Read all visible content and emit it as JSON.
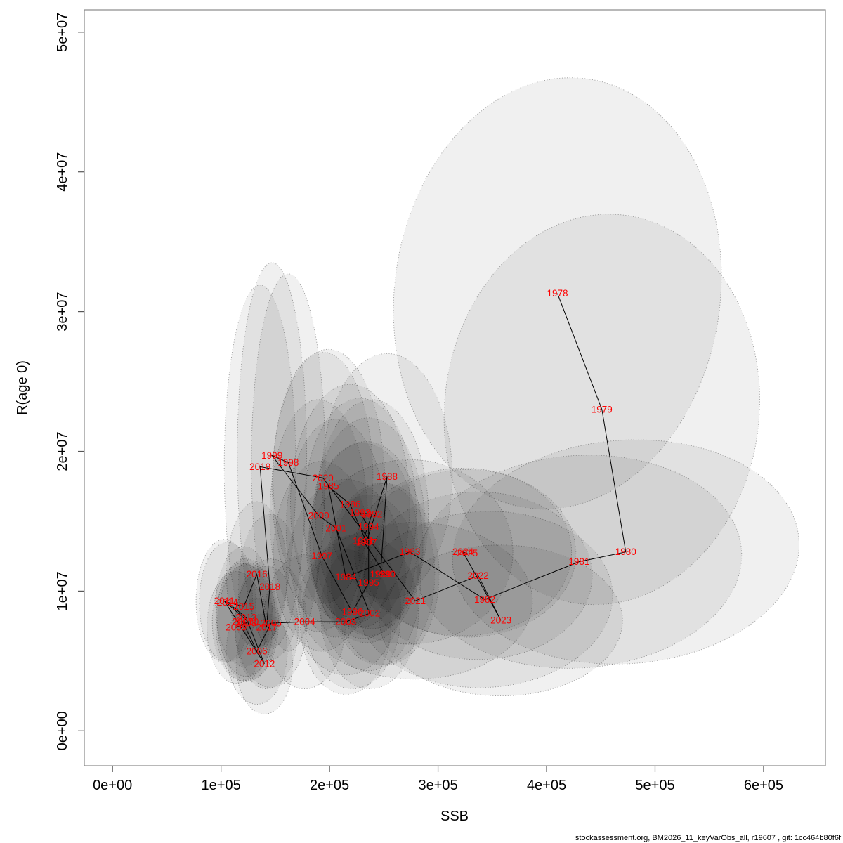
{
  "page": {
    "background": "#ffffff"
  },
  "caption": "stockassessment.org, BM2026_11_keyVarObs_all, r19607 , git: 1cc464b80f6f",
  "chart_data": {
    "type": "scatter",
    "title": "",
    "xlabel": "SSB",
    "ylabel": "R(age 0)",
    "xlim": [
      -26000,
      657000
    ],
    "ylim": [
      -2500000,
      51600000
    ],
    "x_ticks": {
      "values": [
        0,
        100000,
        200000,
        300000,
        400000,
        500000,
        600000
      ],
      "labels": [
        "0e+00",
        "1e+05",
        "2e+05",
        "3e+05",
        "4e+05",
        "5e+05",
        "6e+05"
      ]
    },
    "y_ticks": {
      "values": [
        0,
        10000000,
        20000000,
        30000000,
        40000000,
        50000000
      ],
      "labels": [
        "0e+00",
        "1e+07",
        "2e+07",
        "3e+07",
        "4e+07",
        "5e+07"
      ]
    },
    "grid": false,
    "legend": "none",
    "label_color": "#ff0000",
    "line_color": "#000000",
    "ellipse_fill_alpha": 0.06,
    "ellipse_stroke": "rgba(70,70,70,0.55)",
    "box_color": "#888888",
    "tick_color": "#555555",
    "note": "Year points connected chronologically; each point has a translucent dotted covariance ellipse (semi-axes ell_sx, ell_sy in data units, rot in degrees).",
    "points": [
      {
        "year": 1978,
        "ssb": 410000,
        "rec": 31300000,
        "ell_sx": 150000,
        "ell_sy": 15500000,
        "rot": 8
      },
      {
        "year": 1979,
        "ssb": 451000,
        "rec": 23000000,
        "ell_sx": 145000,
        "ell_sy": 14000000,
        "rot": 6
      },
      {
        "year": 1980,
        "ssb": 473000,
        "rec": 12800000,
        "ell_sx": 160000,
        "ell_sy": 8000000,
        "rot": -4
      },
      {
        "year": 1981,
        "ssb": 430000,
        "rec": 12100000,
        "ell_sx": 150000,
        "ell_sy": 7600000,
        "rot": -4
      },
      {
        "year": 1982,
        "ssb": 343000,
        "rec": 9400000,
        "ell_sx": 118000,
        "ell_sy": 6300000,
        "rot": -3
      },
      {
        "year": 1983,
        "ssb": 274000,
        "rec": 12800000,
        "ell_sx": 95000,
        "ell_sy": 6600000,
        "rot": 0
      },
      {
        "year": 1984,
        "ssb": 215000,
        "rec": 11000000,
        "ell_sx": 55000,
        "ell_sy": 7000000,
        "rot": 0
      },
      {
        "year": 1985,
        "ssb": 199000,
        "rec": 17500000,
        "ell_sx": 52000,
        "ell_sy": 9800000,
        "rot": 0
      },
      {
        "year": 1986,
        "ssb": 219000,
        "rec": 16200000,
        "ell_sx": 55000,
        "ell_sy": 8600000,
        "rot": 0
      },
      {
        "year": 1987,
        "ssb": 234000,
        "rec": 13500000,
        "ell_sx": 52000,
        "ell_sy": 7200000,
        "rot": 0
      },
      {
        "year": 1988,
        "ssb": 253000,
        "rec": 18200000,
        "ell_sx": 60000,
        "ell_sy": 8800000,
        "rot": 0
      },
      {
        "year": 1989,
        "ssb": 247000,
        "rec": 11200000,
        "ell_sx": 50000,
        "ell_sy": 6500000,
        "rot": 0
      },
      {
        "year": 1990,
        "ssb": 251000,
        "rec": 11200000,
        "ell_sx": 50000,
        "ell_sy": 6500000,
        "rot": 0
      },
      {
        "year": 1991,
        "ssb": 231000,
        "rec": 13600000,
        "ell_sx": 50000,
        "ell_sy": 7000000,
        "rot": 0
      },
      {
        "year": 1992,
        "ssb": 239000,
        "rec": 15500000,
        "ell_sx": 52000,
        "ell_sy": 8200000,
        "rot": 0
      },
      {
        "year": 1993,
        "ssb": 228000,
        "rec": 15600000,
        "ell_sx": 52000,
        "ell_sy": 8200000,
        "rot": 0
      },
      {
        "year": 1994,
        "ssb": 236000,
        "rec": 14600000,
        "ell_sx": 52000,
        "ell_sy": 7800000,
        "rot": 0
      },
      {
        "year": 1995,
        "ssb": 236000,
        "rec": 10600000,
        "ell_sx": 48000,
        "ell_sy": 6300000,
        "rot": 0
      },
      {
        "year": 1996,
        "ssb": 221000,
        "rec": 8500000,
        "ell_sx": 45000,
        "ell_sy": 5500000,
        "rot": 0
      },
      {
        "year": 1997,
        "ssb": 193000,
        "rec": 12500000,
        "ell_sx": 45000,
        "ell_sy": 6800000,
        "rot": 0
      },
      {
        "year": 1998,
        "ssb": 162000,
        "rec": 19200000,
        "ell_sx": 34000,
        "ell_sy": 13500000,
        "rot": 0
      },
      {
        "year": 1999,
        "ssb": 147000,
        "rec": 19700000,
        "ell_sx": 32000,
        "ell_sy": 13800000,
        "rot": 0
      },
      {
        "year": 2000,
        "ssb": 190000,
        "rec": 15400000,
        "ell_sx": 45000,
        "ell_sy": 8300000,
        "rot": 0
      },
      {
        "year": 2001,
        "ssb": 206000,
        "rec": 14500000,
        "ell_sx": 46000,
        "ell_sy": 7800000,
        "rot": 0
      },
      {
        "year": 2002,
        "ssb": 237000,
        "rec": 8400000,
        "ell_sx": 45000,
        "ell_sy": 5400000,
        "rot": 0
      },
      {
        "year": 2003,
        "ssb": 215000,
        "rec": 7800000,
        "ell_sx": 42000,
        "ell_sy": 5200000,
        "rot": 0
      },
      {
        "year": 2004,
        "ssb": 177000,
        "rec": 7800000,
        "ell_sx": 38000,
        "ell_sy": 4800000,
        "rot": 0
      },
      {
        "year": 2005,
        "ssb": 146000,
        "rec": 7700000,
        "ell_sx": 33000,
        "ell_sy": 4600000,
        "rot": 0
      },
      {
        "year": 2006,
        "ssb": 133000,
        "rec": 5700000,
        "ell_sx": 28000,
        "ell_sy": 3800000,
        "rot": 0
      },
      {
        "year": 2007,
        "ssb": 120000,
        "rec": 7800000,
        "ell_sx": 28000,
        "ell_sy": 4200000,
        "rot": 0
      },
      {
        "year": 2008,
        "ssb": 123000,
        "rec": 7700000,
        "ell_sx": 28000,
        "ell_sy": 4200000,
        "rot": 0
      },
      {
        "year": 2009,
        "ssb": 114000,
        "rec": 7400000,
        "ell_sx": 27000,
        "ell_sy": 4000000,
        "rot": 0
      },
      {
        "year": 2010,
        "ssb": 125000,
        "rec": 7800000,
        "ell_sx": 28000,
        "ell_sy": 4200000,
        "rot": 0
      },
      {
        "year": 2011,
        "ssb": 103000,
        "rec": 9300000,
        "ell_sx": 26000,
        "ell_sy": 4400000,
        "rot": 0
      },
      {
        "year": 2012,
        "ssb": 140000,
        "rec": 4800000,
        "ell_sx": 26000,
        "ell_sy": 3600000,
        "rot": 0
      },
      {
        "year": 2013,
        "ssb": 123000,
        "rec": 8100000,
        "ell_sx": 27000,
        "ell_sy": 4200000,
        "rot": 0
      },
      {
        "year": 2014,
        "ssb": 106000,
        "rec": 9200000,
        "ell_sx": 26000,
        "ell_sy": 4300000,
        "rot": 0
      },
      {
        "year": 2015,
        "ssb": 121000,
        "rec": 8900000,
        "ell_sx": 26000,
        "ell_sy": 4300000,
        "rot": 0
      },
      {
        "year": 2016,
        "ssb": 133000,
        "rec": 11200000,
        "ell_sx": 28000,
        "ell_sy": 5200000,
        "rot": 0
      },
      {
        "year": 2017,
        "ssb": 142000,
        "rec": 7400000,
        "ell_sx": 29000,
        "ell_sy": 4400000,
        "rot": 0
      },
      {
        "year": 2018,
        "ssb": 145000,
        "rec": 10300000,
        "ell_sx": 29000,
        "ell_sy": 5200000,
        "rot": 0
      },
      {
        "year": 2019,
        "ssb": 136000,
        "rec": 18900000,
        "ell_sx": 33000,
        "ell_sy": 13000000,
        "rot": 0
      },
      {
        "year": 2020,
        "ssb": 194000,
        "rec": 18100000,
        "ell_sx": 46000,
        "ell_sy": 9000000,
        "rot": 0
      },
      {
        "year": 2021,
        "ssb": 279000,
        "rec": 9300000,
        "ell_sx": 108000,
        "ell_sy": 5600000,
        "rot": 0
      },
      {
        "year": 2022,
        "ssb": 337000,
        "rec": 11100000,
        "ell_sx": 105000,
        "ell_sy": 6000000,
        "rot": 0
      },
      {
        "year": 2023,
        "ssb": 358000,
        "rec": 7900000,
        "ell_sx": 112000,
        "ell_sy": 5400000,
        "rot": 0
      },
      {
        "year": 2024,
        "ssb": 323000,
        "rec": 12800000,
        "ell_sx": 100000,
        "ell_sy": 6000000,
        "rot": 0
      },
      {
        "year": 2025,
        "ssb": 327000,
        "rec": 12700000,
        "ell_sx": 100000,
        "ell_sy": 6000000,
        "rot": 0
      }
    ]
  }
}
